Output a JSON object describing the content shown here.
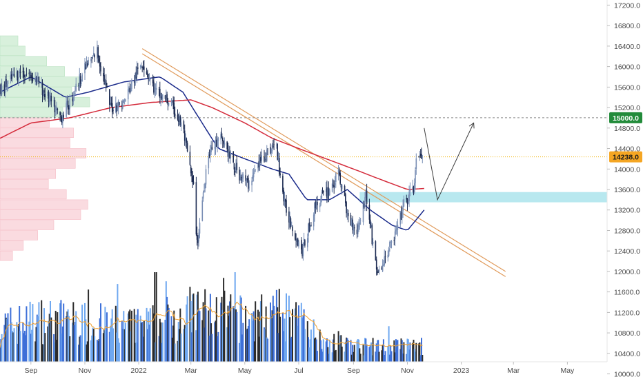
{
  "chart_data": {
    "type": "candlestick",
    "y_axis": {
      "position": "right",
      "ticks": [
        17200,
        16800,
        16400,
        16000,
        15600,
        15200,
        14800,
        14400,
        14000,
        13600,
        13200,
        12800,
        12400,
        12000,
        11600,
        11200,
        10800,
        10400,
        10000
      ],
      "tick_labels": [
        "17200.0",
        "16800.0",
        "16400.0",
        "16000.0",
        "15600.0",
        "15200.0",
        "14800.0",
        "14400.0",
        "14000.0",
        "13600.0",
        "13200.0",
        "12800.0",
        "12400.0",
        "12000.0",
        "11600.0",
        "11200.0",
        "10800.0",
        "10400.0",
        "10000.0"
      ],
      "range": [
        9900,
        17300
      ]
    },
    "x_axis": {
      "labels": [
        {
          "text": "Sep",
          "date": "2021-09-01"
        },
        {
          "text": "Nov",
          "date": "2021-11-01"
        },
        {
          "text": "2022",
          "date": "2022-01-01"
        },
        {
          "text": "Mar",
          "date": "2022-03-01"
        },
        {
          "text": "May",
          "date": "2022-05-01"
        },
        {
          "text": "Jul",
          "date": "2022-07-01"
        },
        {
          "text": "Sep",
          "date": "2022-09-01"
        },
        {
          "text": "Nov",
          "date": "2022-11-01"
        },
        {
          "text": "2023",
          "date": "2023-01-01"
        },
        {
          "text": "Mar",
          "date": "2023-03-01"
        },
        {
          "text": "May",
          "date": "2023-05-01"
        }
      ],
      "range": [
        "2021-07-28",
        "2023-06-15"
      ]
    },
    "price_path": [
      {
        "date": "2021-07-28",
        "value": 15500
      },
      {
        "date": "2021-08-10",
        "value": 15750
      },
      {
        "date": "2021-08-20",
        "value": 15900
      },
      {
        "date": "2021-09-05",
        "value": 15800
      },
      {
        "date": "2021-09-20",
        "value": 15400
      },
      {
        "date": "2021-10-05",
        "value": 15000
      },
      {
        "date": "2021-10-15",
        "value": 15300
      },
      {
        "date": "2021-10-30",
        "value": 15900
      },
      {
        "date": "2021-11-15",
        "value": 16300
      },
      {
        "date": "2021-11-30",
        "value": 15200
      },
      {
        "date": "2021-12-15",
        "value": 15300
      },
      {
        "date": "2022-01-05",
        "value": 16100
      },
      {
        "date": "2022-01-20",
        "value": 15500
      },
      {
        "date": "2022-02-05",
        "value": 15300
      },
      {
        "date": "2022-02-20",
        "value": 14800
      },
      {
        "date": "2022-03-05",
        "value": 13500
      },
      {
        "date": "2022-03-08",
        "value": 12500
      },
      {
        "date": "2022-03-20",
        "value": 14300
      },
      {
        "date": "2022-04-05",
        "value": 14600
      },
      {
        "date": "2022-04-20",
        "value": 14000
      },
      {
        "date": "2022-05-05",
        "value": 13700
      },
      {
        "date": "2022-05-20",
        "value": 14200
      },
      {
        "date": "2022-06-05",
        "value": 14500
      },
      {
        "date": "2022-06-15",
        "value": 13300
      },
      {
        "date": "2022-06-30",
        "value": 12600
      },
      {
        "date": "2022-07-05",
        "value": 12400
      },
      {
        "date": "2022-07-20",
        "value": 13300
      },
      {
        "date": "2022-08-05",
        "value": 13600
      },
      {
        "date": "2022-08-16",
        "value": 13900
      },
      {
        "date": "2022-08-25",
        "value": 13100
      },
      {
        "date": "2022-09-05",
        "value": 12800
      },
      {
        "date": "2022-09-15",
        "value": 13500
      },
      {
        "date": "2022-09-25",
        "value": 12300
      },
      {
        "date": "2022-09-29",
        "value": 11900
      },
      {
        "date": "2022-10-10",
        "value": 12400
      },
      {
        "date": "2022-10-20",
        "value": 12800
      },
      {
        "date": "2022-10-28",
        "value": 13300
      },
      {
        "date": "2022-11-08",
        "value": 13600
      },
      {
        "date": "2022-11-11",
        "value": 14200
      },
      {
        "date": "2022-11-18",
        "value": 14238
      }
    ],
    "lines": [
      {
        "name": "",
        "color": "#1a2a8a",
        "values": [
          {
            "date": "2021-07-28",
            "value": 15500
          },
          {
            "date": "2021-09-01",
            "value": 15800
          },
          {
            "date": "2021-10-10",
            "value": 15400
          },
          {
            "date": "2021-11-05",
            "value": 15500
          },
          {
            "date": "2021-12-15",
            "value": 15700
          },
          {
            "date": "2022-01-25",
            "value": 15800
          },
          {
            "date": "2022-02-20",
            "value": 15500
          },
          {
            "date": "2022-03-10",
            "value": 15000
          },
          {
            "date": "2022-04-01",
            "value": 14400
          },
          {
            "date": "2022-05-01",
            "value": 14200
          },
          {
            "date": "2022-06-01",
            "value": 14000
          },
          {
            "date": "2022-06-20",
            "value": 13900
          },
          {
            "date": "2022-07-10",
            "value": 13400
          },
          {
            "date": "2022-08-05",
            "value": 13400
          },
          {
            "date": "2022-08-25",
            "value": 13600
          },
          {
            "date": "2022-09-20",
            "value": 13200
          },
          {
            "date": "2022-10-15",
            "value": 12900
          },
          {
            "date": "2022-11-01",
            "value": 12800
          },
          {
            "date": "2022-11-20",
            "value": 13200
          }
        ]
      },
      {
        "name": "",
        "color": "#d42a3a",
        "values": [
          {
            "date": "2021-07-28",
            "value": 14600
          },
          {
            "date": "2021-09-01",
            "value": 14900
          },
          {
            "date": "2021-10-15",
            "value": 15000
          },
          {
            "date": "2021-12-01",
            "value": 15200
          },
          {
            "date": "2022-01-15",
            "value": 15300
          },
          {
            "date": "2022-03-01",
            "value": 15350
          },
          {
            "date": "2022-03-25",
            "value": 15200
          },
          {
            "date": "2022-05-01",
            "value": 14900
          },
          {
            "date": "2022-06-01",
            "value": 14600
          },
          {
            "date": "2022-07-01",
            "value": 14400
          },
          {
            "date": "2022-08-01",
            "value": 14200
          },
          {
            "date": "2022-09-01",
            "value": 14000
          },
          {
            "date": "2022-10-01",
            "value": 13800
          },
          {
            "date": "2022-11-01",
            "value": 13600
          },
          {
            "date": "2022-11-20",
            "value": 13620
          }
        ]
      }
    ],
    "trendlines": [
      {
        "color": "#e09a5a",
        "from": {
          "date": "2022-01-05",
          "value": 16350
        },
        "to": {
          "date": "2023-02-20",
          "value": 12000
        }
      },
      {
        "color": "#e09a5a",
        "from": {
          "date": "2022-01-05",
          "value": 16250
        },
        "to": {
          "date": "2023-02-20",
          "value": 11900
        }
      }
    ],
    "projection": [
      {
        "date": "2022-11-20",
        "value": 14800
      },
      {
        "date": "2022-12-05",
        "value": 13400
      },
      {
        "date": "2023-01-15",
        "value": 14900
      }
    ],
    "support_zone": {
      "color": "#b8e8ef",
      "from_date": "2022-09-08",
      "to_date": "2023-06-15",
      "low": 13350,
      "high": 13550
    },
    "horizontal_levels": [
      {
        "value": 15000,
        "label": "15000.0",
        "style": "dashed",
        "color": "#8a8a8a",
        "badge_color": "#228b3a"
      },
      {
        "value": 14238,
        "label": "14238.0",
        "style": "dotted",
        "color": "#f0b000",
        "badge_color": "#f5a623"
      }
    ],
    "volume_profile": {
      "bins": [
        {
          "value": 16500,
          "width": 0.2,
          "color": "green"
        },
        {
          "value": 16300,
          "width": 0.28,
          "color": "green"
        },
        {
          "value": 16100,
          "width": 0.52,
          "color": "green"
        },
        {
          "value": 15900,
          "width": 0.72,
          "color": "green"
        },
        {
          "value": 15700,
          "width": 0.88,
          "color": "green"
        },
        {
          "value": 15500,
          "width": 0.8,
          "color": "green"
        },
        {
          "value": 15300,
          "width": 1.0,
          "color": "green"
        },
        {
          "value": 15100,
          "width": 0.7,
          "color": "green"
        },
        {
          "value": 14900,
          "width": 0.55,
          "color": "red"
        },
        {
          "value": 14700,
          "width": 0.82,
          "color": "red"
        },
        {
          "value": 14500,
          "width": 0.78,
          "color": "red"
        },
        {
          "value": 14300,
          "width": 0.96,
          "color": "red"
        },
        {
          "value": 14100,
          "width": 0.84,
          "color": "red"
        },
        {
          "value": 13900,
          "width": 0.62,
          "color": "red"
        },
        {
          "value": 13700,
          "width": 0.54,
          "color": "red"
        },
        {
          "value": 13500,
          "width": 0.74,
          "color": "red"
        },
        {
          "value": 13300,
          "width": 0.98,
          "color": "red"
        },
        {
          "value": 13100,
          "width": 0.9,
          "color": "red"
        },
        {
          "value": 12900,
          "width": 0.6,
          "color": "red"
        },
        {
          "value": 12700,
          "width": 0.42,
          "color": "red"
        },
        {
          "value": 12500,
          "width": 0.26,
          "color": "red"
        },
        {
          "value": 12300,
          "width": 0.14,
          "color": "red"
        }
      ]
    },
    "volume_panel": {
      "bar_colors": [
        "#2b2b2b",
        "#3d6fd8",
        "#6fa8f0"
      ],
      "ma_color": "#f0a030",
      "levels": [
        {
          "date": "2021-07-28",
          "value": 0.45
        },
        {
          "date": "2021-09-15",
          "value": 0.55
        },
        {
          "date": "2021-11-01",
          "value": 0.5
        },
        {
          "date": "2022-01-01",
          "value": 0.45
        },
        {
          "date": "2022-03-05",
          "value": 0.65
        },
        {
          "date": "2022-05-01",
          "value": 0.55
        },
        {
          "date": "2022-06-20",
          "value": 0.62
        },
        {
          "date": "2022-08-01",
          "value": 0.25
        },
        {
          "date": "2022-09-15",
          "value": 0.2
        },
        {
          "date": "2022-11-20",
          "value": 0.2
        }
      ]
    }
  }
}
